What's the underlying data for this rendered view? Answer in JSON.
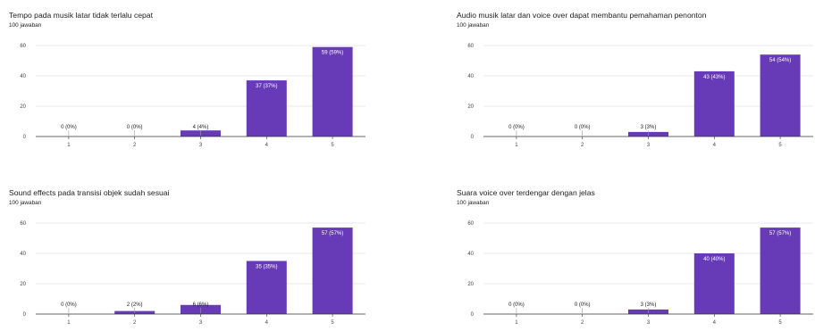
{
  "colors": {
    "bar": "#673ab7",
    "grid": "#e0e0e0",
    "axis": "#333333",
    "label_inside": "#ffffff",
    "label_outside": "#202124"
  },
  "chart_data": [
    {
      "type": "bar",
      "title": "Tempo pada musik latar tidak terlalu cepat",
      "subtitle": "100 jawaban",
      "categories": [
        "1",
        "2",
        "3",
        "4",
        "5"
      ],
      "values": [
        0,
        0,
        4,
        37,
        59
      ],
      "data_labels": [
        "0 (0%)",
        "0 (0%)",
        "4 (4%)",
        "37 (37%)",
        "59 (59%)"
      ],
      "y_ticks": [
        "0",
        "20",
        "40",
        "60"
      ],
      "ylim": [
        0,
        60
      ],
      "grid": true
    },
    {
      "type": "bar",
      "title": "Audio musik latar dan voice over dapat membantu pemahaman penonton",
      "subtitle": "100 jawaban",
      "categories": [
        "1",
        "2",
        "3",
        "4",
        "5"
      ],
      "values": [
        0,
        0,
        3,
        43,
        54
      ],
      "data_labels": [
        "0 (0%)",
        "0 (0%)",
        "3 (3%)",
        "43 (43%)",
        "54 (54%)"
      ],
      "y_ticks": [
        "0",
        "20",
        "40",
        "60"
      ],
      "ylim": [
        0,
        60
      ],
      "grid": true
    },
    {
      "type": "bar",
      "title": "Sound effects pada transisi objek sudah sesuai",
      "subtitle": "100 jawaban",
      "categories": [
        "1",
        "2",
        "3",
        "4",
        "5"
      ],
      "values": [
        0,
        2,
        6,
        35,
        57
      ],
      "data_labels": [
        "0 (0%)",
        "2 (2%)",
        "6 (6%)",
        "35 (35%)",
        "57 (57%)"
      ],
      "y_ticks": [
        "0",
        "20",
        "40",
        "60"
      ],
      "ylim": [
        0,
        60
      ],
      "grid": true
    },
    {
      "type": "bar",
      "title": "Suara voice over terdengar dengan jelas",
      "subtitle": "100 jawaban",
      "categories": [
        "1",
        "2",
        "3",
        "4",
        "5"
      ],
      "values": [
        0,
        0,
        3,
        40,
        57
      ],
      "data_labels": [
        "0 (0%)",
        "0 (0%)",
        "3 (3%)",
        "40 (40%)",
        "57 (57%)"
      ],
      "y_ticks": [
        "0",
        "20",
        "40",
        "60"
      ],
      "ylim": [
        0,
        60
      ],
      "grid": true
    }
  ]
}
